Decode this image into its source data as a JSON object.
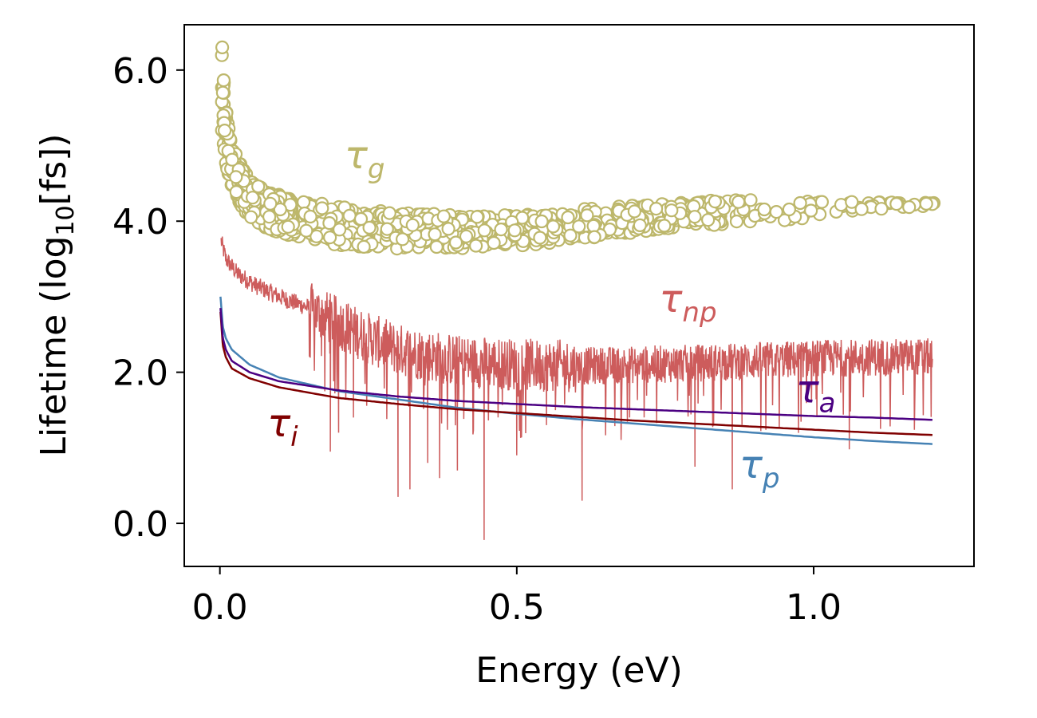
{
  "chart_data": {
    "type": "scatter",
    "title": "",
    "xlabel": "Energy (eV)",
    "ylabel": {
      "prefix": "Lifetime (log",
      "sub": "10",
      "suffix": "[fs])"
    },
    "xlim": [
      -0.06,
      1.27
    ],
    "ylim": [
      -0.57,
      6.6
    ],
    "xticks": [
      0.0,
      0.5,
      1.0
    ],
    "xtick_labels": [
      "0.0",
      "0.5",
      "1.0"
    ],
    "yticks": [
      0.0,
      2.0,
      4.0,
      6.0
    ],
    "ytick_labels": [
      "0.0",
      "2.0",
      "4.0",
      "6.0"
    ],
    "grid": false,
    "legend": "none",
    "series": [
      {
        "key": "tau_g",
        "name": "τg",
        "label_main": "τ",
        "label_sub": "g",
        "kind": "scatter",
        "color": "#BDB76B",
        "label_pos": [
          0.21,
          4.7
        ],
        "band": {
          "x": [
            0.003,
            0.01,
            0.02,
            0.035,
            0.05,
            0.08,
            0.12,
            0.16,
            0.2,
            0.25,
            0.3,
            0.35,
            0.4,
            0.45,
            0.5,
            0.55,
            0.6,
            0.65,
            0.7,
            0.75,
            0.8,
            0.85,
            0.9,
            0.95,
            1.0,
            1.05,
            1.1,
            1.15,
            1.2
          ],
          "upper": [
            6.3,
            5.5,
            5.0,
            4.75,
            4.55,
            4.4,
            4.3,
            4.25,
            4.2,
            4.15,
            4.12,
            4.1,
            4.08,
            4.08,
            4.08,
            4.1,
            4.15,
            4.2,
            4.22,
            4.25,
            4.27,
            4.28,
            4.28,
            4.28,
            4.27,
            4.26,
            4.25,
            4.25,
            4.25
          ],
          "lower": [
            5.0,
            4.7,
            4.45,
            4.2,
            4.05,
            3.9,
            3.8,
            3.72,
            3.68,
            3.65,
            3.63,
            3.63,
            3.64,
            3.65,
            3.67,
            3.7,
            3.75,
            3.8,
            3.85,
            3.9,
            3.93,
            3.96,
            3.98,
            4.0,
            4.05,
            4.1,
            4.15,
            4.18,
            4.2
          ]
        }
      },
      {
        "key": "tau_np",
        "name": "τnp",
        "label_main": "τ",
        "label_sub": "np",
        "kind": "noisy-line",
        "color": "#CD5C5C",
        "label_pos": [
          0.74,
          2.8
        ],
        "trend": {
          "x": [
            0.0,
            0.01,
            0.03,
            0.06,
            0.1,
            0.15,
            0.2,
            0.25,
            0.3,
            0.4,
            0.5,
            0.6,
            0.7,
            0.8,
            0.9,
            1.0,
            1.1,
            1.2
          ],
          "y": [
            3.8,
            3.5,
            3.3,
            3.15,
            3.0,
            2.85,
            2.65,
            2.45,
            2.3,
            2.15,
            2.1,
            2.08,
            2.1,
            2.12,
            2.15,
            2.18,
            2.2,
            2.2
          ]
        },
        "spikes": [
          {
            "x": 0.186,
            "y": 0.95
          },
          {
            "x": 0.2,
            "y": 1.2
          },
          {
            "x": 0.225,
            "y": 1.4
          },
          {
            "x": 0.3,
            "y": 0.35
          },
          {
            "x": 0.32,
            "y": 0.45
          },
          {
            "x": 0.35,
            "y": 0.8
          },
          {
            "x": 0.37,
            "y": 0.6
          },
          {
            "x": 0.4,
            "y": 0.7
          },
          {
            "x": 0.445,
            "y": -0.22
          },
          {
            "x": 0.5,
            "y": 0.9
          },
          {
            "x": 0.55,
            "y": 1.3
          },
          {
            "x": 0.61,
            "y": 0.3
          },
          {
            "x": 0.69,
            "y": 1.4
          },
          {
            "x": 0.8,
            "y": 0.75
          },
          {
            "x": 0.863,
            "y": 0.45
          },
          {
            "x": 1.06,
            "y": 0.98
          }
        ]
      },
      {
        "key": "tau_a",
        "name": "τa",
        "label_main": "τ",
        "label_sub": "a",
        "kind": "line",
        "color": "#4B0082",
        "label_pos": [
          0.97,
          1.6
        ],
        "x": [
          0.001,
          0.005,
          0.01,
          0.02,
          0.05,
          0.1,
          0.2,
          0.3,
          0.4,
          0.5,
          0.6,
          0.7,
          0.8,
          0.9,
          1.0,
          1.1,
          1.2
        ],
        "y": [
          2.85,
          2.45,
          2.3,
          2.15,
          2.0,
          1.88,
          1.76,
          1.68,
          1.62,
          1.58,
          1.54,
          1.51,
          1.48,
          1.45,
          1.42,
          1.4,
          1.37
        ]
      },
      {
        "key": "tau_i",
        "name": "τi",
        "label_main": "τ",
        "label_sub": "i",
        "kind": "line",
        "color": "#800000",
        "label_pos": [
          0.08,
          1.15
        ],
        "x": [
          0.001,
          0.005,
          0.01,
          0.02,
          0.05,
          0.1,
          0.2,
          0.3,
          0.4,
          0.5,
          0.6,
          0.7,
          0.8,
          0.9,
          1.0,
          1.1,
          1.2
        ],
        "y": [
          2.8,
          2.35,
          2.2,
          2.05,
          1.92,
          1.8,
          1.66,
          1.58,
          1.51,
          1.46,
          1.41,
          1.36,
          1.32,
          1.28,
          1.24,
          1.2,
          1.17
        ]
      },
      {
        "key": "tau_p",
        "name": "τp",
        "label_main": "τ",
        "label_sub": "p",
        "kind": "line",
        "color": "#4682B4",
        "label_pos": [
          0.875,
          0.6
        ],
        "x": [
          0.001,
          0.005,
          0.01,
          0.02,
          0.05,
          0.1,
          0.2,
          0.3,
          0.4,
          0.5,
          0.6,
          0.7,
          0.8,
          0.9,
          1.0,
          1.1,
          1.2
        ],
        "y": [
          3.0,
          2.6,
          2.45,
          2.3,
          2.1,
          1.93,
          1.75,
          1.64,
          1.53,
          1.45,
          1.38,
          1.32,
          1.26,
          1.2,
          1.14,
          1.09,
          1.05
        ]
      }
    ]
  }
}
